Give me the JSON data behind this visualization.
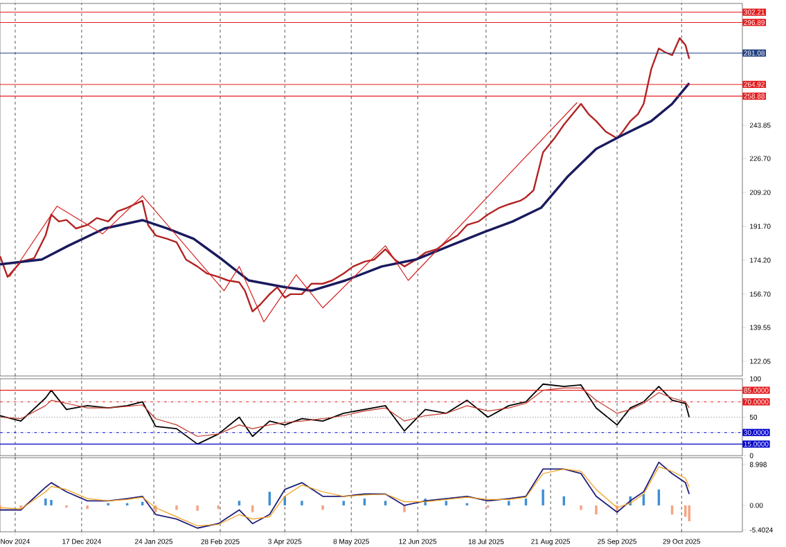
{
  "chart_data": [
    {
      "type": "line",
      "tick_labels": "y",
      "grid": "x",
      "xlim": [
        "2024-11-04",
        "2025-11-30"
      ],
      "ylim": [
        114.5,
        306.7
      ],
      "xticks": [
        {
          "value": "2024-11-12",
          "label": null
        },
        {
          "value": "2024-12-17",
          "label": null
        },
        {
          "value": "2025-01-24",
          "label": null
        },
        {
          "value": "2025-02-28",
          "label": null
        },
        {
          "value": "2025-04-03",
          "label": null
        },
        {
          "value": "2025-05-08",
          "label": null
        },
        {
          "value": "2025-06-12",
          "label": null
        },
        {
          "value": "2025-07-18",
          "label": null
        },
        {
          "value": "2025-08-21",
          "label": null
        },
        {
          "value": "2025-09-25",
          "label": null
        },
        {
          "value": "2025-10-29",
          "label": null
        }
      ],
      "yticks": [
        122.05,
        139.55,
        {
          "value": 156.7,
          "label": "156.70"
        },
        {
          "value": 174.2,
          "label": "174.20"
        },
        {
          "value": 191.7,
          "label": "191.70"
        },
        {
          "value": 209.2,
          "label": "209.20"
        },
        {
          "value": 226.7,
          "label": "226.70"
        },
        243.85
      ],
      "series": [
        {
          "color": "#b22222",
          "x": [
            "2024-11-04",
            "2024-11-08",
            "2024-11-15",
            "2024-11-22",
            "2024-11-28",
            "2024-12-01",
            "2024-12-05",
            "2024-12-09",
            "2024-12-14",
            "2024-12-20",
            "2024-12-25",
            "2024-12-31",
            "2025-01-05",
            "2025-01-10",
            "2025-01-18",
            "2025-01-21",
            "2025-01-25",
            "2025-01-31",
            "2025-02-05",
            "2025-02-10",
            "2025-02-16",
            "2025-02-21",
            "2025-02-27",
            "2025-03-04",
            "2025-03-10",
            "2025-03-13",
            "2025-03-17",
            "2025-03-21",
            "2025-03-26",
            "2025-03-30",
            "2025-04-03",
            "2025-04-06",
            "2025-04-12",
            "2025-04-17",
            "2025-04-23",
            "2025-04-28",
            "2025-05-04",
            "2025-05-09",
            "2025-05-15",
            "2025-05-20",
            "2025-05-26",
            "2025-05-31",
            "2025-06-05",
            "2025-06-11",
            "2025-06-16",
            "2025-06-22",
            "2025-06-27",
            "2025-07-03",
            "2025-07-08",
            "2025-07-14",
            "2025-07-19",
            "2025-07-25",
            "2025-07-30",
            "2025-08-05",
            "2025-08-08",
            "2025-08-12",
            "2025-08-17",
            "2025-08-23",
            "2025-08-28",
            "2025-09-03",
            "2025-09-06",
            "2025-09-10",
            "2025-09-14",
            "2025-09-19",
            "2025-09-25",
            "2025-09-28",
            "2025-10-02",
            "2025-10-06",
            "2025-10-09",
            "2025-10-13",
            "2025-10-17",
            "2025-10-20",
            "2025-10-24",
            "2025-10-28",
            "2025-10-31",
            "2025-11-02"
          ],
          "values": [
            176.3,
            165.6,
            173.5,
            175.3,
            187.0,
            197.8,
            194.2,
            195.0,
            190.6,
            192.4,
            196.0,
            194.2,
            199.5,
            201.3,
            204.9,
            192.4,
            187.0,
            185.3,
            183.5,
            174.5,
            171.0,
            167.4,
            165.6,
            163.8,
            162.8,
            158.5,
            147.8,
            151.3,
            156.7,
            160.3,
            154.9,
            156.7,
            156.7,
            162.1,
            162.1,
            163.8,
            167.4,
            171.0,
            173.5,
            174.5,
            179.9,
            174.5,
            171.0,
            174.5,
            178.1,
            179.9,
            183.5,
            187.0,
            192.4,
            194.2,
            197.8,
            201.3,
            203.1,
            204.9,
            206.7,
            210.3,
            229.9,
            237.1,
            244.2,
            251.3,
            254.9,
            249.6,
            246.0,
            240.6,
            237.1,
            240.6,
            246.0,
            249.6,
            254.9,
            272.8,
            283.5,
            281.7,
            280.0,
            288.8,
            285.3,
            278.1
          ]
        },
        {
          "color": "#1a1a5e",
          "x": [
            "2024-11-04",
            "2024-11-26",
            "2024-12-10",
            "2024-12-29",
            "2025-01-18",
            "2025-01-31",
            "2025-02-14",
            "2025-03-01",
            "2025-03-15",
            "2025-04-03",
            "2025-04-17",
            "2025-05-05",
            "2025-05-24",
            "2025-06-11",
            "2025-06-29",
            "2025-07-17",
            "2025-08-01",
            "2025-08-16",
            "2025-08-30",
            "2025-09-14",
            "2025-09-28",
            "2025-10-13",
            "2025-10-24",
            "2025-11-02"
          ],
          "values": [
            172.1,
            174.6,
            181.7,
            190.6,
            194.9,
            190.6,
            185.3,
            174.6,
            163.8,
            160.3,
            158.5,
            163.8,
            171.0,
            174.6,
            181.7,
            188.8,
            194.2,
            201.3,
            217.4,
            231.7,
            238.8,
            246.0,
            254.9,
            265.6
          ]
        },
        {
          "color": "#d62020",
          "x": [
            "2024-11-09",
            "2024-12-04",
            "2024-12-28",
            "2025-01-18",
            "2025-03-02",
            "2025-03-10",
            "2025-03-23",
            "2025-04-09",
            "2025-04-23",
            "2025-05-26",
            "2025-06-07",
            "2025-09-04"
          ],
          "values": [
            165.6,
            202.1,
            187.8,
            207.4,
            158.5,
            171.0,
            142.4,
            166.7,
            149.6,
            181.7,
            163.8,
            255.6
          ]
        }
      ],
      "ref_lines": [
        {
          "axis": "y",
          "value": 302.21,
          "label": "302.21",
          "color": "#e31a1c"
        },
        {
          "axis": "y",
          "value": 296.89,
          "label": "296.89",
          "color": "#e31a1c"
        },
        {
          "axis": "y",
          "value": 281.08,
          "label": "281.08",
          "color": "#1f3f7f"
        },
        {
          "axis": "y",
          "value": 264.92,
          "label": "264.92",
          "color": "#e31a1c"
        },
        {
          "axis": "y",
          "value": 258.88,
          "label": "258.88",
          "color": "#e31a1c"
        }
      ]
    },
    {
      "type": "line",
      "tick_labels": "y",
      "grid": "x",
      "xlim": [
        "2024-11-04",
        "2025-11-30"
      ],
      "ylim": [
        0,
        100
      ],
      "yticks": [
        0,
        50,
        100
      ],
      "xticks": [
        {
          "value": "2024-11-12",
          "label": null
        },
        {
          "value": "2024-12-17",
          "label": null
        },
        {
          "value": "2025-01-24",
          "label": null
        },
        {
          "value": "2025-02-28",
          "label": null
        },
        {
          "value": "2025-04-03",
          "label": null
        },
        {
          "value": "2025-05-08",
          "label": null
        },
        {
          "value": "2025-06-12",
          "label": null
        },
        {
          "value": "2025-07-18",
          "label": null
        },
        {
          "value": "2025-08-21",
          "label": null
        },
        {
          "value": "2025-09-25",
          "label": null
        },
        {
          "value": "2025-10-29",
          "label": null
        }
      ],
      "x": [
        "2024-11-04",
        "2024-11-15",
        "2024-11-28",
        "2024-12-01",
        "2024-12-09",
        "2024-12-20",
        "2024-12-31",
        "2025-01-10",
        "2025-01-18",
        "2025-01-25",
        "2025-02-05",
        "2025-02-16",
        "2025-02-27",
        "2025-03-10",
        "2025-03-17",
        "2025-03-26",
        "2025-04-03",
        "2025-04-12",
        "2025-04-23",
        "2025-05-04",
        "2025-05-15",
        "2025-05-26",
        "2025-06-05",
        "2025-06-16",
        "2025-06-27",
        "2025-07-08",
        "2025-07-19",
        "2025-07-30",
        "2025-08-08",
        "2025-08-17",
        "2025-08-28",
        "2025-09-06",
        "2025-09-14",
        "2025-09-25",
        "2025-10-02",
        "2025-10-09",
        "2025-10-17",
        "2025-10-24",
        "2025-10-31",
        "2025-11-02"
      ],
      "series": [
        {
          "color": "#000000",
          "values": [
            52,
            45,
            75,
            85,
            60,
            65,
            62,
            65,
            70,
            38,
            35,
            15,
            28,
            50,
            25,
            45,
            40,
            48,
            45,
            55,
            60,
            65,
            32,
            60,
            55,
            72,
            50,
            65,
            70,
            93,
            90,
            92,
            62,
            40,
            62,
            70,
            90,
            72,
            68,
            50
          ]
        },
        {
          "color": "#c0392b",
          "values": [
            50,
            48,
            65,
            72,
            68,
            62,
            62,
            64,
            66,
            48,
            40,
            25,
            28,
            40,
            35,
            40,
            43,
            45,
            48,
            52,
            58,
            62,
            45,
            52,
            55,
            65,
            58,
            62,
            68,
            85,
            88,
            88,
            72,
            55,
            60,
            68,
            82,
            75,
            70,
            62
          ]
        }
      ],
      "ref_lines": [
        {
          "axis": "y",
          "value": 85,
          "label": "85.0000",
          "color": "#e31a1c",
          "line_style": "solid"
        },
        {
          "axis": "y",
          "value": 70,
          "label": "70.0000",
          "color": "#e31a1c",
          "line_style": "dashed"
        },
        {
          "axis": "y",
          "value": 50,
          "color": "#808080",
          "line_style": "dotted"
        },
        {
          "axis": "y",
          "value": 30,
          "label": "30.0000",
          "color": "#0000cc",
          "line_style": "dashed"
        },
        {
          "axis": "y",
          "value": 15,
          "label": "15.0000",
          "color": "#0000cc",
          "line_style": "solid"
        }
      ]
    },
    {
      "type": "line",
      "grid": "x",
      "xlim": [
        "2024-11-04",
        "2025-11-30"
      ],
      "ylim": [
        -5.8,
        10.5
      ],
      "yticks": [
        8.998,
        {
          "value": 0,
          "label": "0.00"
        },
        -5.4024
      ],
      "xticks": [
        {
          "value": "2024-11-12",
          "label": "Nov 2024"
        },
        {
          "value": "2024-12-17",
          "label": "17 Dec 2024"
        },
        {
          "value": "2025-01-24",
          "label": "24 Jan 2025"
        },
        {
          "value": "2025-02-28",
          "label": "28 Feb 2025"
        },
        {
          "value": "2025-04-03",
          "label": "3 Apr 2025"
        },
        {
          "value": "2025-05-08",
          "label": "8 May 2025"
        },
        {
          "value": "2025-06-12",
          "label": "12 Jun 2025"
        },
        {
          "value": "2025-07-18",
          "label": "18 Jul 2025"
        },
        {
          "value": "2025-08-21",
          "label": "21 Aug 2025"
        },
        {
          "value": "2025-09-25",
          "label": "25 Sep 2025"
        },
        {
          "value": "2025-10-29",
          "label": "29 Oct 2025"
        }
      ],
      "x": [
        "2024-11-04",
        "2024-11-15",
        "2024-11-28",
        "2024-12-01",
        "2024-12-09",
        "2024-12-20",
        "2024-12-31",
        "2025-01-10",
        "2025-01-18",
        "2025-01-25",
        "2025-02-05",
        "2025-02-16",
        "2025-02-27",
        "2025-03-10",
        "2025-03-17",
        "2025-03-26",
        "2025-04-03",
        "2025-04-12",
        "2025-04-23",
        "2025-05-04",
        "2025-05-15",
        "2025-05-26",
        "2025-06-05",
        "2025-06-16",
        "2025-06-27",
        "2025-07-08",
        "2025-07-19",
        "2025-07-30",
        "2025-08-08",
        "2025-08-17",
        "2025-08-28",
        "2025-09-06",
        "2025-09-14",
        "2025-09-25",
        "2025-10-02",
        "2025-10-09",
        "2025-10-17",
        "2025-10-24",
        "2025-10-31",
        "2025-11-02"
      ],
      "series": [
        {
          "type": "bar",
          "colors": [
            "#f4a582",
            "#f4a582",
            "#3d8fd6",
            "#3d8fd6",
            "#f4a582",
            "#f4a582",
            "#3d8fd6",
            "#3d8fd6",
            "#3d8fd6",
            "#f4a582",
            "#f4a582",
            "#f4a582",
            "#f4a582",
            "#3d8fd6",
            "#f4a582",
            "#3d8fd6",
            "#3d8fd6",
            "#3d8fd6",
            "#f4a582",
            "#3d8fd6",
            "#3d8fd6",
            "#3d8fd6",
            "#f4a582",
            "#3d8fd6",
            "#3d8fd6",
            "#3d8fd6",
            "#f4a582",
            "#3d8fd6",
            "#3d8fd6",
            "#3d8fd6",
            "#3d8fd6",
            "#f4a582",
            "#f4a582",
            "#f4a582",
            "#3d8fd6",
            "#3d8fd6",
            "#3d8fd6",
            "#f4a582",
            "#f4a582",
            "#f4a582"
          ],
          "values": [
            -1,
            -1,
            1.5,
            1.2,
            -0.5,
            -0.8,
            0.5,
            0.5,
            0.8,
            -1.5,
            -1,
            -1.2,
            -0.8,
            1,
            -1.5,
            3,
            2,
            1,
            -1,
            1,
            1.5,
            1,
            -1.5,
            1.5,
            1,
            0.5,
            -0.5,
            1,
            1.5,
            3.5,
            2,
            -1,
            -2,
            -1.5,
            2,
            2.5,
            3.5,
            -2,
            -2.5,
            -3.5
          ]
        },
        {
          "color": "#1f1f7a",
          "values": [
            -1,
            -1,
            4,
            5,
            3,
            1,
            1,
            1.5,
            2,
            -2,
            -3,
            -5,
            -4,
            -1,
            -4,
            -2,
            3.5,
            5,
            2,
            2,
            2.5,
            2.5,
            0,
            1,
            1.5,
            2,
            1,
            1.5,
            2,
            8,
            8,
            7,
            2,
            -1.5,
            1,
            3,
            9.5,
            7,
            5,
            2.5
          ]
        },
        {
          "color": "#f39c12",
          "values": [
            -0.5,
            -0.8,
            3,
            4.2,
            3.5,
            1.5,
            1,
            1.3,
            1.8,
            -0.5,
            -2.5,
            -4.5,
            -4.2,
            -2,
            -3,
            -2.5,
            2,
            4.5,
            3,
            2,
            2.3,
            2.5,
            0.8,
            0.8,
            1.3,
            1.8,
            1.3,
            1.3,
            1.8,
            7,
            8,
            7.5,
            3.5,
            -0.5,
            0.5,
            2.5,
            8.5,
            7.5,
            6,
            4
          ]
        }
      ]
    }
  ]
}
